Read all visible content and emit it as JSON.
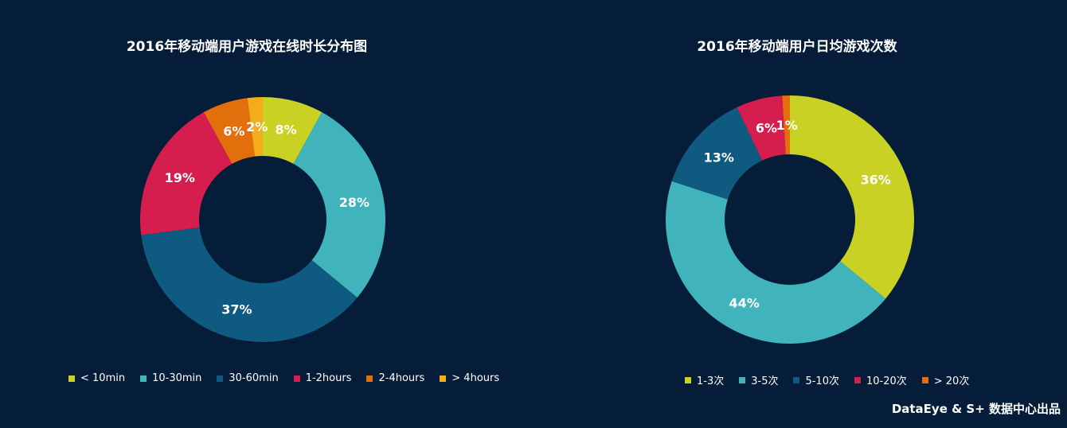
{
  "credit": "DataEye & S+ 数据中心出品",
  "chart_data": [
    {
      "type": "pie",
      "variant": "donut",
      "title": "2016年移动端用户游戏在线时长分布图",
      "categories": [
        "< 10min",
        "10-30min",
        "30-60min",
        "1-2hours",
        "2-4hours",
        "> 4hours"
      ],
      "values": [
        8,
        28,
        37,
        19,
        6,
        2
      ],
      "labels": [
        "8%",
        "28%",
        "37%",
        "19%",
        "6%",
        "2%"
      ],
      "colors": [
        "#c9d224",
        "#40b3bb",
        "#0e5a80",
        "#d51d4e",
        "#e36f0c",
        "#f3ad1b"
      ],
      "legend_position": "bottom"
    },
    {
      "type": "pie",
      "variant": "donut",
      "title": "2016年移动端用户日均游戏次数",
      "categories": [
        "1-3次",
        "3-5次",
        "5-10次",
        "10-20次",
        "> 20次"
      ],
      "values": [
        36,
        44,
        13,
        6,
        1
      ],
      "labels": [
        "36%",
        "44%",
        "13%",
        "6%",
        "1%"
      ],
      "colors": [
        "#c9d224",
        "#40b3bb",
        "#0e5a80",
        "#d51d4e",
        "#e36f0c"
      ],
      "legend_position": "bottom"
    }
  ]
}
